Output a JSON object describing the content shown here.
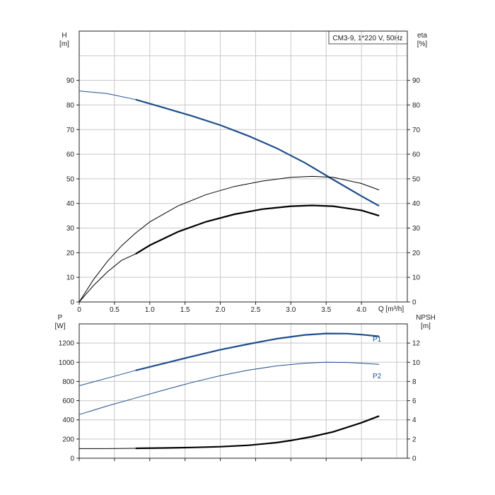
{
  "chart_data": {
    "type": "line",
    "colors": {
      "blue": "#1f4e8c",
      "black": "#000000"
    },
    "curve_title": "CM3-9, 1*220 V, 50Hz",
    "x_axis": {
      "label": "Q [m³/h]",
      "range": [
        0,
        4.65
      ],
      "ticks": [
        "0",
        "0.5",
        "1.0",
        "1.5",
        "2.0",
        "2.5",
        "3.0",
        "3.5",
        "4.0"
      ],
      "tick_values": [
        0,
        0.5,
        1.0,
        1.5,
        2.0,
        2.5,
        3.0,
        3.5,
        4.0
      ]
    },
    "top_panel": {
      "left_axis": {
        "label_name": "H",
        "label_unit": "[m]",
        "range": [
          0,
          110
        ],
        "ticks": [
          "0",
          "10",
          "20",
          "30",
          "40",
          "50",
          "60",
          "70",
          "80",
          "90"
        ],
        "tick_values": [
          0,
          10,
          20,
          30,
          40,
          50,
          60,
          70,
          80,
          90
        ]
      },
      "right_axis": {
        "label_name": "eta",
        "label_unit": "[%]",
        "range": [
          0,
          110
        ],
        "ticks": [
          "0",
          "10",
          "20",
          "30",
          "40",
          "50",
          "60",
          "70",
          "80",
          "90"
        ],
        "tick_values": [
          0,
          10,
          20,
          30,
          40,
          50,
          60,
          70,
          80,
          90
        ]
      },
      "series": [
        {
          "color": "blue",
          "axis": "left",
          "emphasis_from_x": 0.8,
          "x": [
            0,
            0.4,
            0.8,
            1.2,
            1.6,
            2.0,
            2.4,
            2.8,
            3.2,
            3.6,
            4.0,
            4.25
          ],
          "y": [
            85.7,
            84.6,
            82.2,
            78.9,
            75.5,
            71.8,
            67.4,
            62.4,
            56.5,
            49.7,
            43.0,
            39.0
          ]
        },
        {
          "color": "black",
          "axis": "right",
          "emphasis_from_x": 99,
          "x": [
            0,
            0.2,
            0.4,
            0.6,
            0.8,
            1.0,
            1.4,
            1.8,
            2.2,
            2.6,
            3.0,
            3.3,
            3.6,
            4.0,
            4.25
          ],
          "y": [
            0,
            9.0,
            16.5,
            22.8,
            28.0,
            32.5,
            39.0,
            43.6,
            46.9,
            49.1,
            50.6,
            51.0,
            50.6,
            48.1,
            45.5
          ]
        },
        {
          "color": "black",
          "axis": "right",
          "emphasis_from_x": 0.8,
          "x": [
            0,
            0.2,
            0.4,
            0.6,
            0.8,
            1.0,
            1.4,
            1.8,
            2.2,
            2.6,
            3.0,
            3.3,
            3.6,
            4.0,
            4.25
          ],
          "y": [
            0,
            6.6,
            12.2,
            16.9,
            19.5,
            23.0,
            28.5,
            32.6,
            35.6,
            37.7,
            38.9,
            39.2,
            38.9,
            37.2,
            35.0
          ]
        }
      ]
    },
    "bottom_panel": {
      "left_axis": {
        "label_name": "P",
        "label_unit": "[W]",
        "range": [
          0,
          1400
        ],
        "ticks": [
          "0",
          "200",
          "400",
          "600",
          "800",
          "1000",
          "1200"
        ],
        "tick_values": [
          0,
          200,
          400,
          600,
          800,
          1000,
          1200
        ]
      },
      "right_axis": {
        "label_name": "NPSH",
        "label_unit": "[m]",
        "range": [
          0,
          14
        ],
        "ticks": [
          "0",
          "2",
          "4",
          "6",
          "8",
          "10",
          "12"
        ],
        "tick_values": [
          0,
          2,
          4,
          6,
          8,
          10,
          12
        ]
      },
      "series": [
        {
          "name": "P1",
          "color": "blue",
          "axis": "left",
          "emphasis_from_x": 0.8,
          "x": [
            0,
            0.4,
            0.8,
            1.2,
            1.6,
            2.0,
            2.4,
            2.8,
            3.2,
            3.5,
            3.8,
            4.0,
            4.25
          ],
          "y": [
            755,
            835,
            915,
            988,
            1060,
            1130,
            1190,
            1245,
            1285,
            1300,
            1298,
            1288,
            1270
          ]
        },
        {
          "name": "P2",
          "color": "blue",
          "axis": "left",
          "emphasis_from_x": 99,
          "x": [
            0,
            0.4,
            0.8,
            1.2,
            1.6,
            2.0,
            2.4,
            2.8,
            3.2,
            3.5,
            3.8,
            4.0,
            4.25
          ],
          "y": [
            455,
            545,
            628,
            710,
            790,
            860,
            918,
            962,
            990,
            1000,
            998,
            990,
            978
          ]
        },
        {
          "color": "black",
          "axis": "right",
          "emphasis_from_x": 0.8,
          "x": [
            0,
            0.4,
            0.8,
            1.2,
            1.6,
            2.0,
            2.4,
            2.8,
            3.0,
            3.3,
            3.6,
            4.0,
            4.25
          ],
          "y": [
            1.0,
            1.0,
            1.03,
            1.07,
            1.12,
            1.2,
            1.35,
            1.63,
            1.85,
            2.25,
            2.75,
            3.7,
            4.4
          ]
        }
      ]
    }
  }
}
